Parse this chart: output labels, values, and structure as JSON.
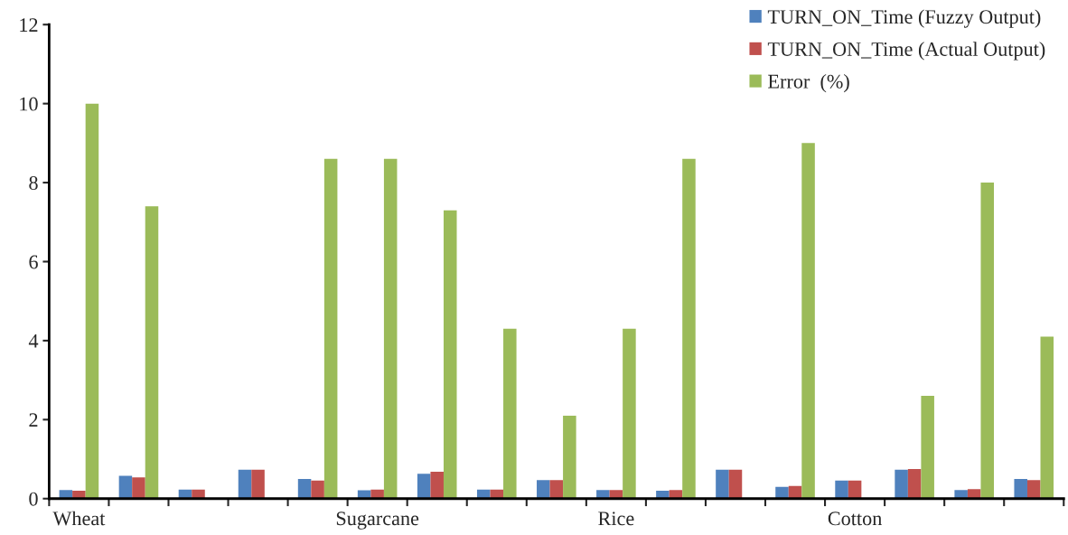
{
  "chart_data": {
    "type": "bar",
    "categories": [
      "Wheat",
      null,
      null,
      null,
      null,
      "Sugarcane",
      null,
      null,
      null,
      "Rice",
      null,
      null,
      null,
      "Cotton",
      null,
      null,
      null
    ],
    "series": [
      {
        "name": "TURN_ON_Time (Fuzzy Output)",
        "color": "#4f81bd",
        "values": [
          0.22,
          0.58,
          0.23,
          0.73,
          0.5,
          0.21,
          0.63,
          0.23,
          0.47,
          0.22,
          0.2,
          0.73,
          0.3,
          0.46,
          0.73,
          0.22,
          0.5
        ]
      },
      {
        "name": "TURN_ON_Time (Actual Output)",
        "color": "#c0504d",
        "values": [
          0.2,
          0.54,
          0.23,
          0.73,
          0.46,
          0.23,
          0.68,
          0.23,
          0.47,
          0.22,
          0.22,
          0.73,
          0.32,
          0.46,
          0.75,
          0.24,
          0.47
        ]
      },
      {
        "name": "Error  (%)",
        "color": "#9bbb59",
        "values": [
          10,
          7.4,
          null,
          null,
          8.6,
          8.6,
          7.3,
          4.3,
          2.1,
          4.3,
          8.6,
          null,
          9,
          null,
          2.6,
          8,
          4.1
        ]
      }
    ],
    "ylim": [
      0,
      12
    ],
    "yticks": [
      0,
      2,
      4,
      6,
      8,
      10,
      12
    ],
    "grid": false,
    "legend": "top right"
  }
}
